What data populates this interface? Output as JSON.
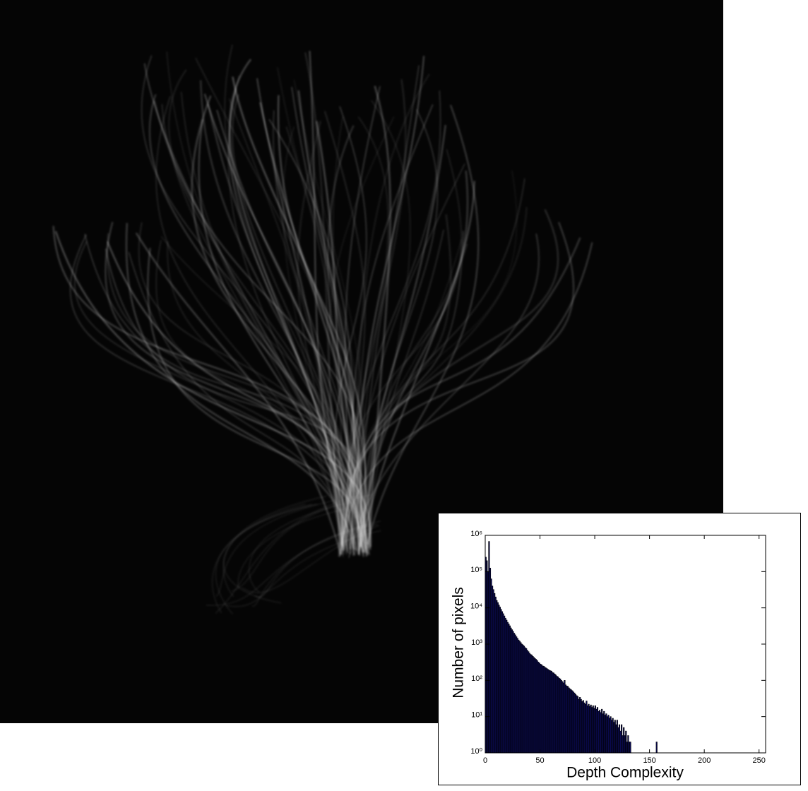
{
  "chart_data": {
    "type": "bar",
    "x_label": "Depth Complexity",
    "y_label": "Number of pixels",
    "x": [
      0,
      1,
      2,
      3,
      4,
      5,
      6,
      7,
      8,
      9,
      10,
      11,
      12,
      13,
      14,
      15,
      16,
      17,
      18,
      19,
      20,
      21,
      22,
      23,
      24,
      25,
      26,
      27,
      28,
      29,
      30,
      31,
      32,
      33,
      34,
      35,
      36,
      37,
      38,
      39,
      40,
      41,
      42,
      43,
      44,
      45,
      46,
      47,
      48,
      49,
      50,
      51,
      52,
      53,
      54,
      55,
      56,
      57,
      58,
      59,
      60,
      61,
      62,
      63,
      64,
      65,
      66,
      67,
      68,
      69,
      70,
      71,
      72,
      73,
      74,
      75,
      76,
      77,
      78,
      79,
      80,
      81,
      82,
      83,
      84,
      85,
      86,
      87,
      88,
      89,
      90,
      91,
      92,
      93,
      94,
      95,
      96,
      97,
      98,
      99,
      100,
      101,
      102,
      103,
      104,
      105,
      106,
      107,
      108,
      109,
      110,
      111,
      112,
      113,
      114,
      115,
      116,
      117,
      118,
      119,
      120,
      121,
      122,
      123,
      124,
      125,
      126,
      127,
      128,
      129,
      130,
      131,
      132,
      156
    ],
    "values": [
      250000,
      200000,
      100000,
      680000,
      125000,
      63000,
      40000,
      32000,
      25000,
      20000,
      16000,
      14000,
      12000,
      10500,
      9100,
      7900,
      6900,
      6000,
      5200,
      4600,
      4000,
      3600,
      3200,
      2800,
      2500,
      2250,
      2000,
      1800,
      1600,
      1450,
      1300,
      1200,
      1100,
      1000,
      950,
      880,
      800,
      760,
      680,
      620,
      560,
      520,
      500,
      460,
      430,
      400,
      380,
      350,
      320,
      300,
      280,
      270,
      250,
      245,
      230,
      220,
      210,
      200,
      190,
      185,
      180,
      165,
      160,
      150,
      140,
      130,
      125,
      115,
      110,
      100,
      93,
      85,
      100,
      75,
      70,
      68,
      62,
      58,
      55,
      52,
      48,
      45,
      41,
      38,
      36,
      30,
      34,
      30,
      26,
      28,
      24,
      22,
      27,
      20,
      22,
      19,
      21,
      18,
      20,
      17,
      20,
      16,
      18,
      14,
      15,
      13,
      16,
      12,
      14,
      11,
      12,
      10,
      11,
      9,
      10,
      8,
      9,
      7,
      8,
      6,
      8,
      5,
      6,
      4,
      6,
      3,
      5,
      3,
      4,
      2,
      3,
      2,
      2,
      2
    ],
    "color": "#0b0b55",
    "edge_color": "#000000",
    "xlim": [
      0,
      256
    ],
    "ylim": [
      1,
      1000000
    ],
    "log_y": true,
    "xticks": [
      0,
      50,
      100,
      150,
      200,
      250
    ],
    "yticks": [
      {
        "value": 1,
        "label": "10⁰"
      },
      {
        "value": 10,
        "label": "10¹"
      },
      {
        "value": 100,
        "label": "10²"
      },
      {
        "value": 1000,
        "label": "10³"
      },
      {
        "value": 10000,
        "label": "10⁴"
      },
      {
        "value": 100000,
        "label": "10⁵"
      },
      {
        "value": 1000000,
        "label": "10⁶"
      }
    ],
    "grid": false
  }
}
